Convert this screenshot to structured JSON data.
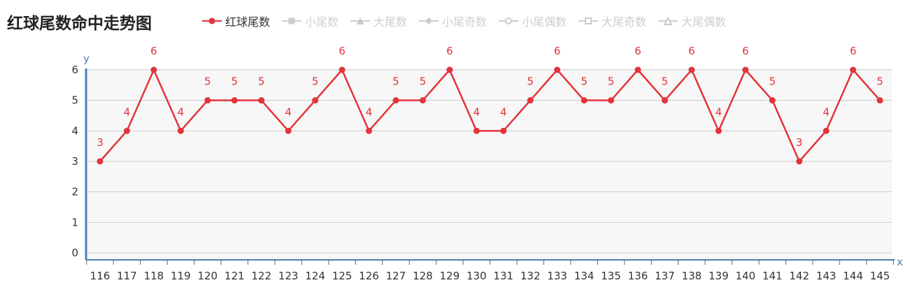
{
  "title": "红球尾数命中走势图",
  "legend": [
    {
      "label": "红球尾数",
      "marker": "circle-filled",
      "color": "#e2343a",
      "active": true
    },
    {
      "label": "小尾数",
      "marker": "square-filled",
      "color": "#cccccc",
      "active": false
    },
    {
      "label": "大尾数",
      "marker": "triangle-filled",
      "color": "#cccccc",
      "active": false
    },
    {
      "label": "小尾奇数",
      "marker": "diamond-filled",
      "color": "#cccccc",
      "active": false
    },
    {
      "label": "小尾偶数",
      "marker": "circle-open",
      "color": "#cccccc",
      "active": false
    },
    {
      "label": "大尾奇数",
      "marker": "square-open",
      "color": "#cccccc",
      "active": false
    },
    {
      "label": "大尾偶数",
      "marker": "triangle-open",
      "color": "#cccccc",
      "active": false
    }
  ],
  "chart_data": {
    "type": "line",
    "title": "红球尾数命中走势图",
    "xlabel": "x",
    "ylabel": "y",
    "x": [
      "116",
      "117",
      "118",
      "119",
      "120",
      "121",
      "122",
      "123",
      "124",
      "125",
      "126",
      "127",
      "128",
      "129",
      "130",
      "131",
      "132",
      "133",
      "134",
      "135",
      "136",
      "137",
      "138",
      "139",
      "140",
      "141",
      "142",
      "143",
      "144",
      "145"
    ],
    "series": [
      {
        "name": "红球尾数",
        "color": "#e2343a",
        "values": [
          3,
          4,
          6,
          4,
          5,
          5,
          5,
          4,
          5,
          6,
          4,
          5,
          5,
          6,
          4,
          4,
          5,
          6,
          5,
          5,
          6,
          5,
          6,
          4,
          6,
          5,
          3,
          4,
          6,
          5
        ]
      }
    ],
    "yticks": [
      0,
      1,
      2,
      3,
      4,
      5,
      6
    ],
    "ylim": [
      0,
      6
    ],
    "grid": true,
    "legend_position": "top",
    "axis_color": "#4f7fb5",
    "grid_color": "#cccccc",
    "plot_background": "#f7f7f7",
    "data_labels": true
  }
}
